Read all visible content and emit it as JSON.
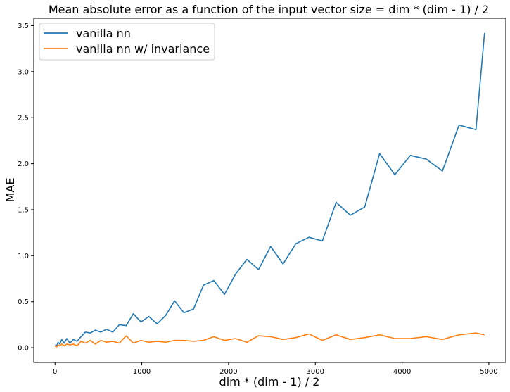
{
  "chart_data": {
    "type": "line",
    "title": "Mean absolute error as a function of the input vector size = dim * (dim - 1) / 2",
    "xlabel": "dim * (dim - 1) / 2",
    "ylabel": "MAE",
    "xlim": [
      -245,
      5195
    ],
    "ylim": [
      -0.16,
      3.58
    ],
    "xticks": [
      0,
      1000,
      2000,
      3000,
      4000,
      5000
    ],
    "xtick_labels": [
      "0",
      "1000",
      "2000",
      "3000",
      "4000",
      "5000"
    ],
    "yticks": [
      0.0,
      0.5,
      1.0,
      1.5,
      2.0,
      2.5,
      3.0,
      3.5
    ],
    "ytick_labels": [
      "0.0",
      "0.5",
      "1.0",
      "1.5",
      "2.0",
      "2.5",
      "3.0",
      "3.5"
    ],
    "grid": false,
    "legend_position": "top-left",
    "series": [
      {
        "name": "vanilla nn",
        "color": "#1f77b4",
        "x": [
          3,
          10,
          21,
          36,
          55,
          78,
          105,
          136,
          171,
          210,
          253,
          300,
          351,
          406,
          465,
          528,
          595,
          666,
          741,
          820,
          903,
          990,
          1081,
          1176,
          1275,
          1378,
          1485,
          1596,
          1711,
          1830,
          1953,
          2080,
          2211,
          2346,
          2485,
          2628,
          2775,
          2926,
          3081,
          3240,
          3403,
          3570,
          3741,
          3916,
          4095,
          4278,
          4465,
          4656,
          4851,
          4950
        ],
        "y": [
          0.01,
          0.03,
          0.02,
          0.06,
          0.04,
          0.09,
          0.05,
          0.1,
          0.05,
          0.09,
          0.07,
          0.12,
          0.17,
          0.16,
          0.19,
          0.17,
          0.2,
          0.17,
          0.25,
          0.24,
          0.37,
          0.28,
          0.34,
          0.26,
          0.35,
          0.51,
          0.38,
          0.42,
          0.68,
          0.73,
          0.58,
          0.8,
          0.96,
          0.85,
          1.1,
          0.91,
          1.13,
          1.2,
          1.16,
          1.58,
          1.44,
          1.53,
          2.11,
          1.88,
          2.09,
          2.05,
          1.92,
          2.42,
          2.37,
          3.42
        ]
      },
      {
        "name": "vanilla nn w/ invariance",
        "color": "#ff7f0e",
        "x": [
          3,
          10,
          21,
          36,
          55,
          78,
          105,
          136,
          171,
          210,
          253,
          300,
          351,
          406,
          465,
          528,
          595,
          666,
          741,
          820,
          903,
          990,
          1081,
          1176,
          1275,
          1378,
          1485,
          1596,
          1711,
          1830,
          1953,
          2080,
          2211,
          2346,
          2485,
          2628,
          2775,
          2926,
          3081,
          3240,
          3403,
          3570,
          3741,
          3916,
          4095,
          4278,
          4465,
          4656,
          4851,
          4950
        ],
        "y": [
          0.01,
          0.02,
          0.01,
          0.03,
          0.02,
          0.04,
          0.02,
          0.04,
          0.03,
          0.04,
          0.02,
          0.07,
          0.05,
          0.08,
          0.04,
          0.08,
          0.06,
          0.07,
          0.05,
          0.13,
          0.05,
          0.08,
          0.06,
          0.07,
          0.06,
          0.08,
          0.08,
          0.07,
          0.08,
          0.12,
          0.08,
          0.1,
          0.06,
          0.13,
          0.12,
          0.09,
          0.11,
          0.15,
          0.08,
          0.14,
          0.09,
          0.11,
          0.14,
          0.1,
          0.1,
          0.12,
          0.09,
          0.14,
          0.16,
          0.14
        ]
      }
    ]
  }
}
